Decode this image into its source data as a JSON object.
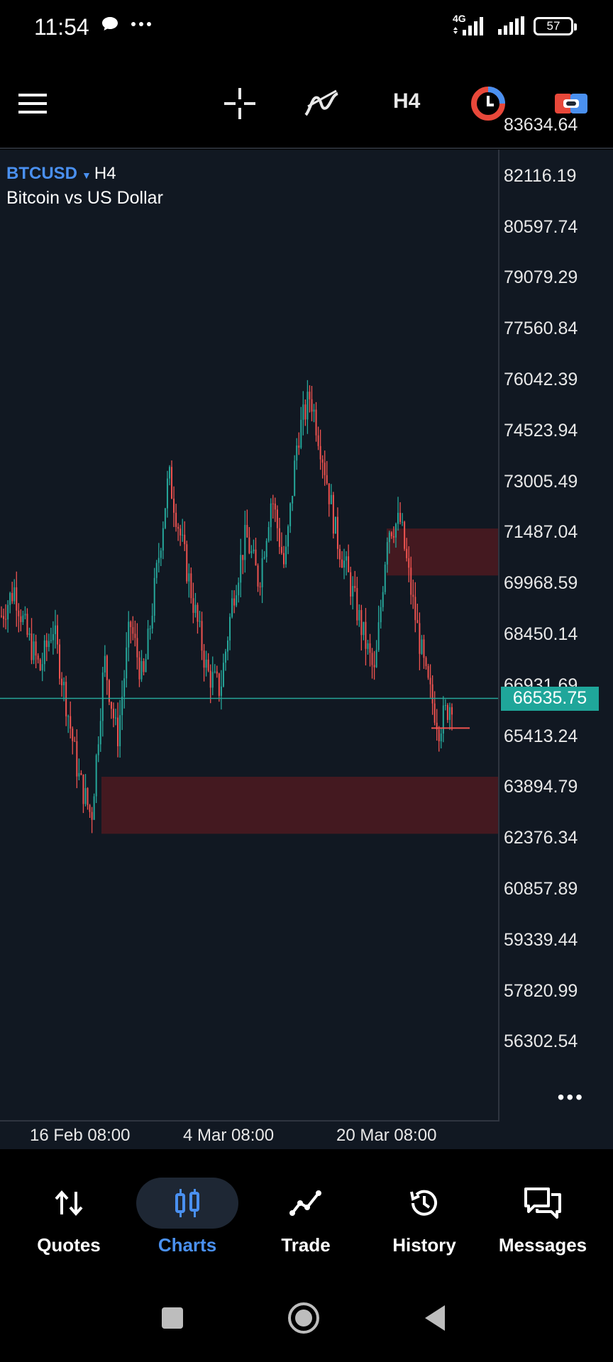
{
  "status_bar": {
    "time": "11:54",
    "network": "4G",
    "battery": "57",
    "icons": [
      "chat-bubble-icon",
      "more-dots-icon",
      "signal-4g-icon",
      "signal-icon",
      "battery-icon"
    ]
  },
  "toolbar": {
    "timeframe": "H4",
    "icons": [
      "menu-icon",
      "crosshair-icon",
      "indicators-icon",
      "one-click-trading-icon",
      "trade-toggle-icon"
    ]
  },
  "chart": {
    "symbol": "BTCUSD",
    "timeframe": "H4",
    "description": "Bitcoin vs US Dollar",
    "current_price": "66535.75",
    "price_labels": [
      "83634.64",
      "82116.19",
      "80597.74",
      "79079.29",
      "77560.84",
      "76042.39",
      "74523.94",
      "73005.49",
      "71487.04",
      "69968.59",
      "68450.14",
      "66931.69",
      "65413.24",
      "63894.79",
      "62376.34",
      "60857.89",
      "59339.44",
      "57820.99",
      "56302.54"
    ],
    "time_labels": [
      "16 Feb 08:00",
      "4 Mar 08:00",
      "20 Mar 08:00"
    ],
    "colors": {
      "bull": "#26a69a",
      "bear": "#ef5350",
      "zone": "#4a1a20",
      "background": "#111822"
    }
  },
  "chart_data": {
    "type": "candlestick",
    "symbol": "BTCUSD",
    "x": [
      "16 Feb 08:00",
      "4 Mar 08:00",
      "20 Mar 08:00"
    ],
    "close_series_approx": [
      69000,
      69800,
      68400,
      67400,
      68700,
      66500,
      64200,
      63000,
      67700,
      65300,
      68800,
      67000,
      70100,
      73200,
      71200,
      69200,
      67300,
      66800,
      69600,
      71400,
      70000,
      72600,
      70400,
      74300,
      75600,
      73700,
      71400,
      70100,
      68600,
      67200,
      71600,
      71800,
      69300,
      67100,
      65700,
      66500
    ],
    "ylim": [
      55000,
      84000
    ],
    "current_price": 66535.75,
    "supply_zone": [
      70200,
      71600
    ],
    "demand_zone": [
      62500,
      64200
    ]
  },
  "bottom_nav": {
    "items": [
      {
        "label": "Quotes",
        "icon": "quotes-arrows-icon",
        "active": false
      },
      {
        "label": "Charts",
        "icon": "charts-candles-icon",
        "active": true
      },
      {
        "label": "Trade",
        "icon": "trade-line-icon",
        "active": false
      },
      {
        "label": "History",
        "icon": "history-clock-icon",
        "active": false
      },
      {
        "label": "Messages",
        "icon": "messages-icon",
        "active": false
      }
    ]
  }
}
